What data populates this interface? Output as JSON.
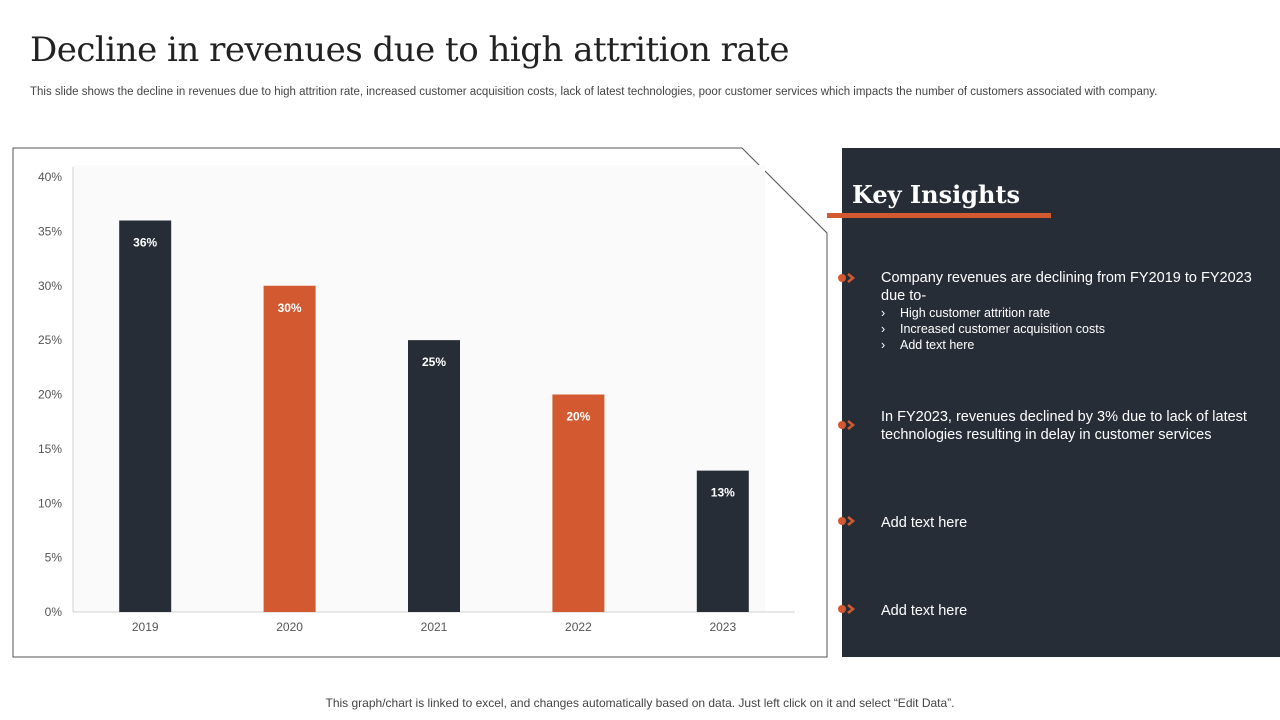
{
  "title": "Decline in revenues due to high attrition rate",
  "subtitle": "This slide shows the decline in revenues due to high attrition rate,  increased customer acquisition costs, lack of latest technologies, poor customer services which impacts the number of customers associated with company.",
  "footer": "This graph/chart is linked to excel,  and changes automatically based on data. Just left click on it and select “Edit Data”.",
  "colors": {
    "dark": "#272d37",
    "accent": "#d35a30"
  },
  "chart_data": {
    "type": "bar",
    "categories": [
      "2019",
      "2020",
      "2021",
      "2022",
      "2023"
    ],
    "values": [
      36,
      30,
      25,
      20,
      13
    ],
    "value_labels": [
      "36%",
      "30%",
      "25%",
      "20%",
      "13%"
    ],
    "bar_colors": [
      "#272d37",
      "#d35a30",
      "#272d37",
      "#d35a30",
      "#272d37"
    ],
    "ylim": [
      0,
      40
    ],
    "yticks": [
      "0%",
      "5%",
      "10%",
      "15%",
      "20%",
      "25%",
      "30%",
      "35%",
      "40%"
    ],
    "grid": false
  },
  "insights": {
    "heading": "Key Insights",
    "items": [
      {
        "text": "Company revenues are declining from FY2019 to FY2023 due to-",
        "subs": [
          "High customer attrition rate",
          "Increased  customer acquisition costs",
          "Add text here"
        ]
      },
      {
        "text": "In FY2023,  revenues declined by 3% due to lack of latest technologies resulting in delay  in customer services"
      },
      {
        "text": "Add text here"
      },
      {
        "text": "Add text here"
      }
    ]
  }
}
